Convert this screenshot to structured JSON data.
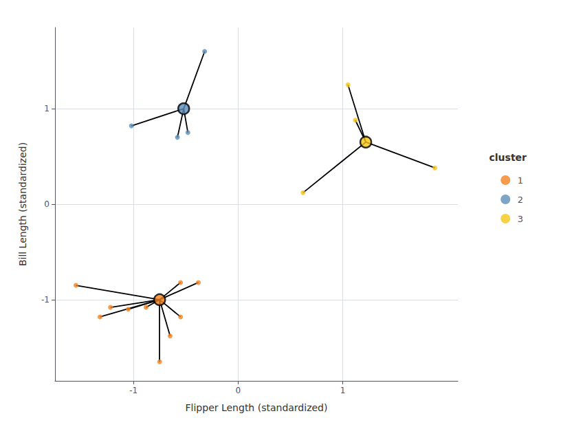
{
  "chart_data": {
    "type": "scatter",
    "title": "",
    "xlabel": "Flipper Length (standardized)",
    "ylabel": "Bill Length (standardized)",
    "xlim": [
      -1.75,
      2.1
    ],
    "ylim": [
      -1.85,
      1.85
    ],
    "xticks": [
      -1,
      0,
      1
    ],
    "yticks": [
      -1,
      0,
      1
    ],
    "grid": true,
    "legend": "right",
    "legend_title": "cluster",
    "color": "#000000",
    "series": [
      {
        "name": "1",
        "color": "#F4831F",
        "center": [
          -0.75,
          -1.0
        ],
        "x": [
          -1.55,
          -1.22,
          -1.05,
          -1.32,
          -0.88,
          -0.55,
          -0.38,
          -0.55,
          -0.65,
          -0.75
        ],
        "values": [
          -0.85,
          -1.08,
          -1.1,
          -1.18,
          -1.08,
          -0.82,
          -0.82,
          -1.18,
          -1.38,
          -1.65
        ]
      },
      {
        "name": "2",
        "color": "#5B8DB8",
        "center": [
          -0.52,
          1.0
        ],
        "x": [
          -0.32,
          -1.02,
          -0.48,
          -0.58
        ],
        "values": [
          1.6,
          0.82,
          0.75,
          0.7
        ]
      },
      {
        "name": "3",
        "color": "#F5C518",
        "center": [
          1.22,
          0.65
        ],
        "x": [
          1.05,
          1.12,
          0.62,
          1.88
        ],
        "values": [
          1.25,
          0.88,
          0.12,
          0.38
        ]
      }
    ]
  }
}
